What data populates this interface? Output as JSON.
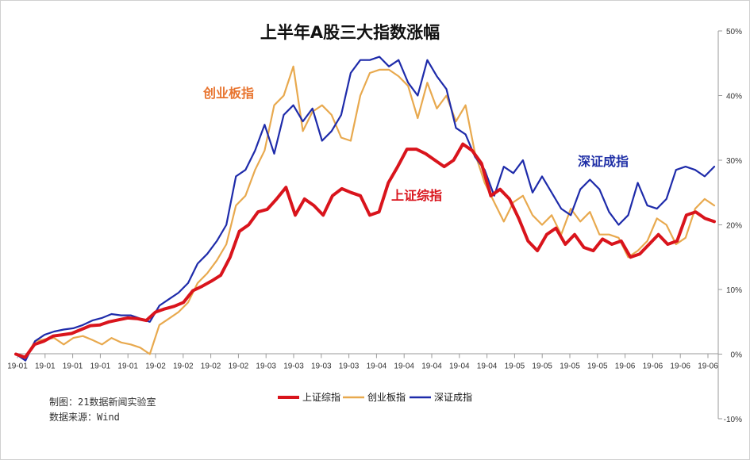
{
  "chart_data": {
    "type": "line",
    "title": "上半年A股三大指数涨幅",
    "ylim": [
      -10,
      50
    ],
    "y_ticks": [
      50,
      40,
      30,
      20,
      10,
      0,
      -10
    ],
    "y_tick_labels": [
      "50%",
      "40%",
      "30%",
      "20%",
      "10%",
      "0%",
      "-10%"
    ],
    "x_tick_labels": [
      "19-01",
      "19-01",
      "19-01",
      "19-01",
      "19-01",
      "19-02",
      "19-02",
      "19-02",
      "19-02",
      "19-03",
      "19-03",
      "19-03",
      "19-03",
      "19-04",
      "19-04",
      "19-04",
      "19-04",
      "19-04",
      "19-05",
      "19-05",
      "19-05",
      "19-05",
      "19-06",
      "19-06",
      "19-06",
      "19-06"
    ],
    "grid": false,
    "legend_position": "bottom",
    "annotations": [
      {
        "text": "创业板指",
        "color": "#E8742F"
      },
      {
        "text": "上证综指",
        "color": "#D9141C"
      },
      {
        "text": "深证成指",
        "color": "#1F2FA6"
      }
    ],
    "credits": [
      "制图：21数据新闻实验室",
      "数据来源：Wind"
    ],
    "series": [
      {
        "name": "上证综指",
        "color": "#D9141C",
        "values": [
          0,
          -0.5,
          1.5,
          2.0,
          2.8,
          3.0,
          3.2,
          3.8,
          4.4,
          4.5,
          5.0,
          5.3,
          5.6,
          5.5,
          5.2,
          6.5,
          7.0,
          7.4,
          8.0,
          9.8,
          10.5,
          11.3,
          12.2,
          15.0,
          19.0,
          20.0,
          22.0,
          22.4,
          24.0,
          25.8,
          21.5,
          24.0,
          23.0,
          21.5,
          24.5,
          25.6,
          25.0,
          24.5,
          21.5,
          22.0,
          26.5,
          29.0,
          31.7,
          31.7,
          31.0,
          30.0,
          29.0,
          30.0,
          32.5,
          31.5,
          29.5,
          24.5,
          25.5,
          24.0,
          21.0,
          17.5,
          16.0,
          18.5,
          19.5,
          17.0,
          18.5,
          16.5,
          16.0,
          17.8,
          17.0,
          17.5,
          15.0,
          15.5,
          17.0,
          18.5,
          17.0,
          17.5,
          21.5,
          22.0,
          21.0,
          20.5
        ]
      },
      {
        "name": "创业板指",
        "color": "#E8A94E",
        "values": [
          0,
          -0.5,
          2.0,
          2.3,
          2.5,
          1.5,
          2.5,
          2.8,
          2.2,
          1.5,
          2.5,
          1.8,
          1.5,
          1.0,
          0.0,
          4.5,
          5.5,
          6.5,
          8.0,
          11.0,
          12.5,
          14.5,
          17.0,
          23.0,
          24.5,
          28.5,
          31.5,
          38.5,
          40.0,
          44.5,
          34.5,
          37.5,
          38.5,
          37.0,
          33.5,
          33.0,
          40.0,
          43.5,
          44.0,
          44.0,
          43.0,
          41.5,
          36.5,
          42.0,
          38.0,
          40.0,
          36.0,
          38.5,
          31.0,
          26.5,
          23.5,
          20.5,
          23.5,
          24.5,
          21.5,
          20.0,
          21.5,
          18.5,
          22.5,
          20.5,
          22.0,
          18.5,
          18.5,
          18.0,
          15.0,
          16.0,
          17.5,
          21.0,
          20.0,
          17.0,
          18.0,
          22.5,
          24.0,
          23.0
        ]
      },
      {
        "name": "深证成指",
        "color": "#1E2BAA",
        "values": [
          0,
          -1.0,
          2.0,
          3.0,
          3.5,
          3.8,
          4.0,
          4.5,
          5.2,
          5.6,
          6.2,
          6.0,
          6.0,
          5.5,
          5.0,
          7.5,
          8.5,
          9.5,
          11.0,
          14.0,
          15.5,
          17.5,
          20.0,
          27.5,
          28.5,
          31.5,
          35.5,
          31.0,
          37.0,
          38.5,
          36.0,
          38.0,
          33.0,
          34.5,
          37.0,
          43.5,
          45.5,
          45.5,
          46.0,
          44.5,
          45.5,
          42.0,
          40.0,
          45.5,
          43.0,
          41.0,
          35.0,
          34.0,
          30.5,
          28.5,
          24.5,
          29.0,
          28.0,
          30.0,
          25.0,
          27.5,
          25.0,
          22.5,
          21.5,
          25.5,
          27.0,
          25.5,
          22.0,
          20.0,
          21.5,
          26.5,
          23.0,
          22.5,
          24.0,
          28.5,
          29.0,
          28.5,
          27.5,
          29.0
        ]
      }
    ]
  }
}
